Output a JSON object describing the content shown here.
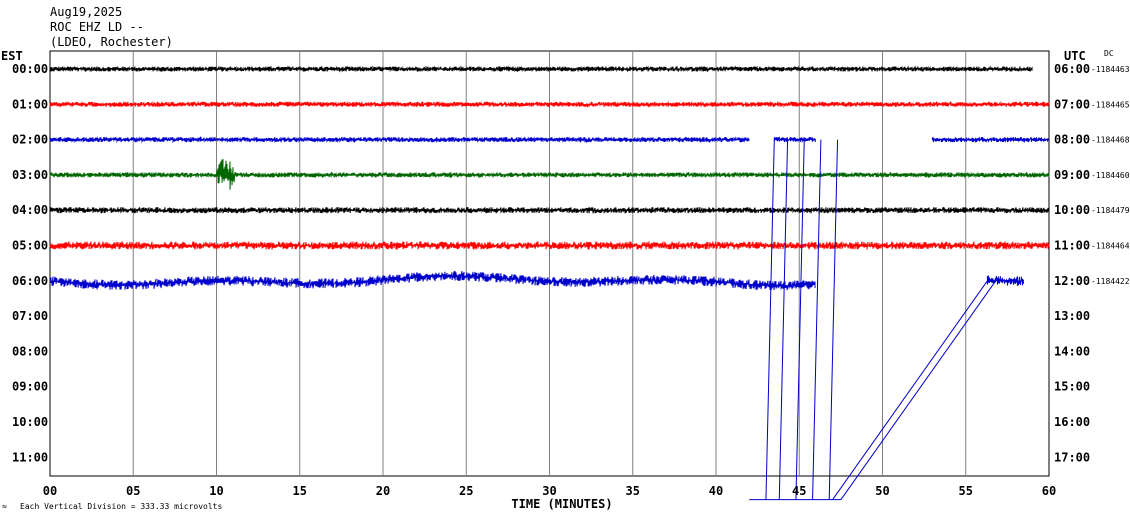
{
  "header": {
    "date": "Aug19,2025",
    "station": "ROC EHZ LD --",
    "network": "(LDEO, Rochester)"
  },
  "left_axis_label": "EST",
  "right_axis_label": "UTC",
  "dc_label": "DC",
  "footer": {
    "xlabel": "TIME (MINUTES)",
    "scale_note": "Each Vertical Division =  333.33 microvolts"
  },
  "colors": {
    "black": "#000000",
    "red": "#ff0000",
    "blue": "#0000cc",
    "green": "#006600",
    "grid": "#808080"
  },
  "chart_data": {
    "type": "line",
    "title": "ROC EHZ LD --",
    "xlabel": "TIME (MINUTES)",
    "xlim": [
      0,
      60
    ],
    "x_ticks": [
      "00",
      "05",
      "10",
      "15",
      "20",
      "25",
      "30",
      "35",
      "40",
      "45",
      "50",
      "55",
      "60"
    ],
    "rows": [
      {
        "est": "00:00",
        "utc": "06:00",
        "dc": "-1184463",
        "color": "black",
        "segments": [
          [
            0,
            59
          ]
        ],
        "amplitude": 2.5
      },
      {
        "est": "01:00",
        "utc": "07:00",
        "dc": "-1184465",
        "color": "red",
        "segments": [
          [
            0,
            60
          ]
        ],
        "amplitude": 2.5
      },
      {
        "est": "02:00",
        "utc": "08:00",
        "dc": "-1184468",
        "color": "blue",
        "segments": [
          [
            0,
            42
          ],
          [
            43.5,
            46
          ],
          [
            53,
            60
          ]
        ],
        "amplitude": 2.5
      },
      {
        "est": "03:00",
        "utc": "09:00",
        "dc": "-1184460",
        "color": "green",
        "segments": [
          [
            0,
            60
          ]
        ],
        "amplitude": 2.5,
        "events": [
          {
            "start": 10.0,
            "end": 12.0,
            "amplitude": 18
          }
        ]
      },
      {
        "est": "04:00",
        "utc": "10:00",
        "dc": "-1184479",
        "color": "black",
        "segments": [
          [
            0,
            60
          ]
        ],
        "amplitude": 3
      },
      {
        "est": "05:00",
        "utc": "11:00",
        "dc": "-1184464",
        "color": "red",
        "segments": [
          [
            0,
            60
          ]
        ],
        "amplitude": 4
      },
      {
        "est": "06:00",
        "utc": "12:00",
        "dc": "-1184422",
        "color": "blue",
        "segments": [
          [
            0,
            46
          ],
          [
            56.3,
            58.5
          ]
        ],
        "amplitude": 5,
        "drift": 5
      },
      {
        "est": "07:00",
        "utc": "13:00",
        "dc": "",
        "color": "blue",
        "segments": []
      },
      {
        "est": "08:00",
        "utc": "14:00",
        "dc": "",
        "color": "blue",
        "segments": []
      },
      {
        "est": "09:00",
        "utc": "15:00",
        "dc": "",
        "color": "blue",
        "segments": []
      },
      {
        "est": "10:00",
        "utc": "16:00",
        "dc": "",
        "color": "blue",
        "segments": []
      },
      {
        "est": "11:00",
        "utc": "17:00",
        "dc": "",
        "color": "blue",
        "segments": []
      }
    ],
    "glitch_lines": [
      [
        [
          43.5,
          2
        ],
        [
          43.0,
          12.2
        ]
      ],
      [
        [
          44.3,
          2
        ],
        [
          43.8,
          12.2
        ]
      ],
      [
        [
          45.3,
          2
        ],
        [
          44.8,
          12.2
        ]
      ],
      [
        [
          46.3,
          2
        ],
        [
          45.8,
          12.2
        ]
      ],
      [
        [
          47.3,
          2
        ],
        [
          46.8,
          12.2
        ]
      ],
      [
        [
          56.3,
          6
        ],
        [
          47.0,
          12.2
        ]
      ],
      [
        [
          56.8,
          6
        ],
        [
          47.5,
          12.2
        ]
      ],
      [
        [
          42.0,
          12.2
        ],
        [
          47.5,
          12.2
        ]
      ]
    ]
  }
}
